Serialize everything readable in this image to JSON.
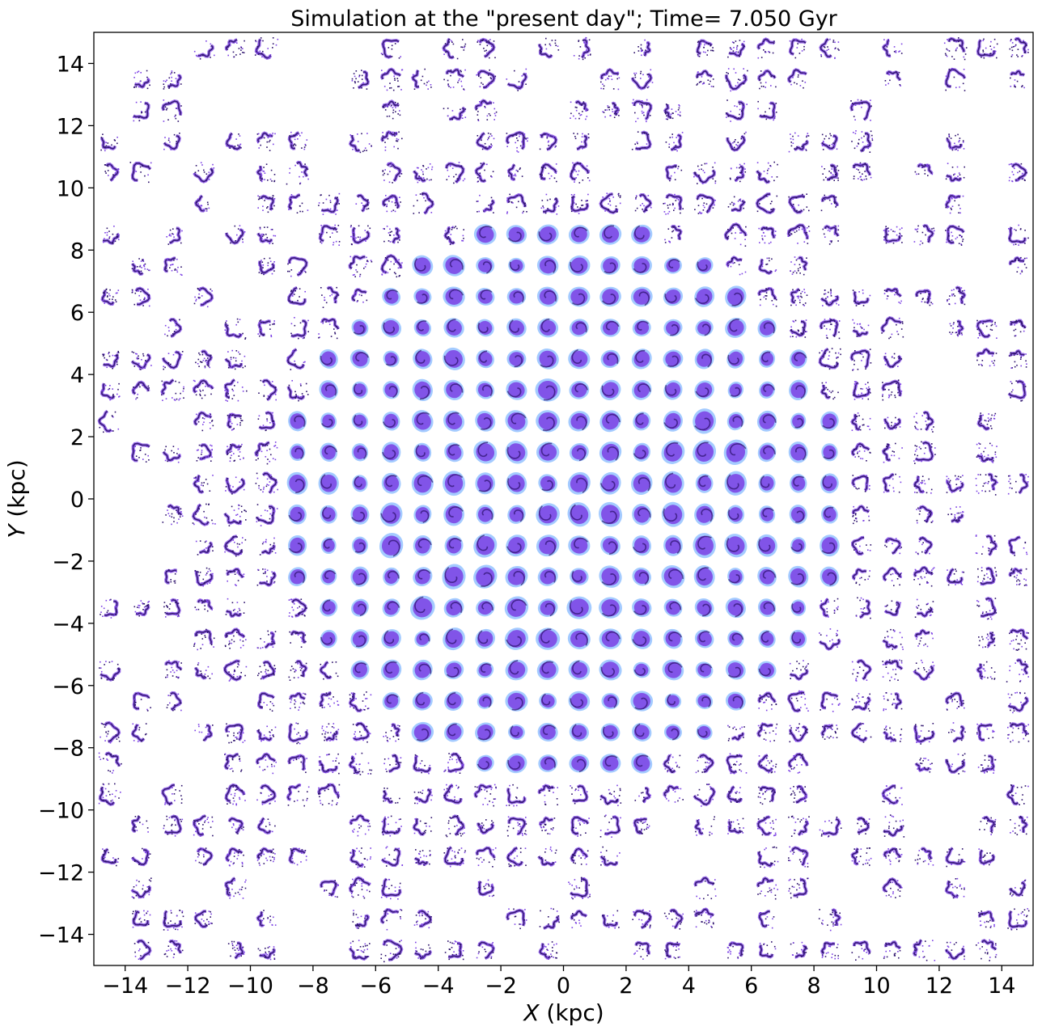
{
  "chart_data": {
    "type": "scatter",
    "title": "Simulation at the \"present day\"; Time= 7.050 Gyr",
    "xlabel": "X (kpc)",
    "ylabel": "Y (kpc)",
    "xlim": [
      -15,
      15
    ],
    "ylim": [
      -15,
      15
    ],
    "xticks": [
      -14,
      -12,
      -10,
      -8,
      -6,
      -4,
      -2,
      0,
      2,
      4,
      6,
      8,
      10,
      12,
      14
    ],
    "yticks": [
      -14,
      -12,
      -10,
      -8,
      -6,
      -4,
      -2,
      0,
      2,
      4,
      6,
      8,
      10,
      12,
      14
    ],
    "xtick_labels": [
      "−14",
      "−12",
      "−10",
      "−8",
      "−6",
      "−4",
      "−2",
      "0",
      "2",
      "4",
      "6",
      "8",
      "10",
      "12",
      "14"
    ],
    "ytick_labels": [
      "−14",
      "−12",
      "−10",
      "−8",
      "−6",
      "−4",
      "−2",
      "0",
      "2",
      "4",
      "6",
      "8",
      "10",
      "12",
      "14"
    ],
    "grid": false,
    "legend": "none",
    "description_of_marks": "grid of small phase-space particle clumps centered every 1 kpc from -14.5 to 14.5 in both X and Y",
    "cell_centers": [
      -14.5,
      -13.5,
      -12.5,
      -11.5,
      -10.5,
      -9.5,
      -8.5,
      -7.5,
      -6.5,
      -5.5,
      -4.5,
      -3.5,
      -2.5,
      -1.5,
      -0.5,
      0.5,
      1.5,
      2.5,
      3.5,
      4.5,
      5.5,
      6.5,
      7.5,
      8.5,
      9.5,
      10.5,
      11.5,
      12.5,
      13.5,
      14.5
    ],
    "colors": {
      "dense": "#2b0f6b",
      "mid": "#7b3fe4",
      "light": "#5aa0ff"
    }
  }
}
